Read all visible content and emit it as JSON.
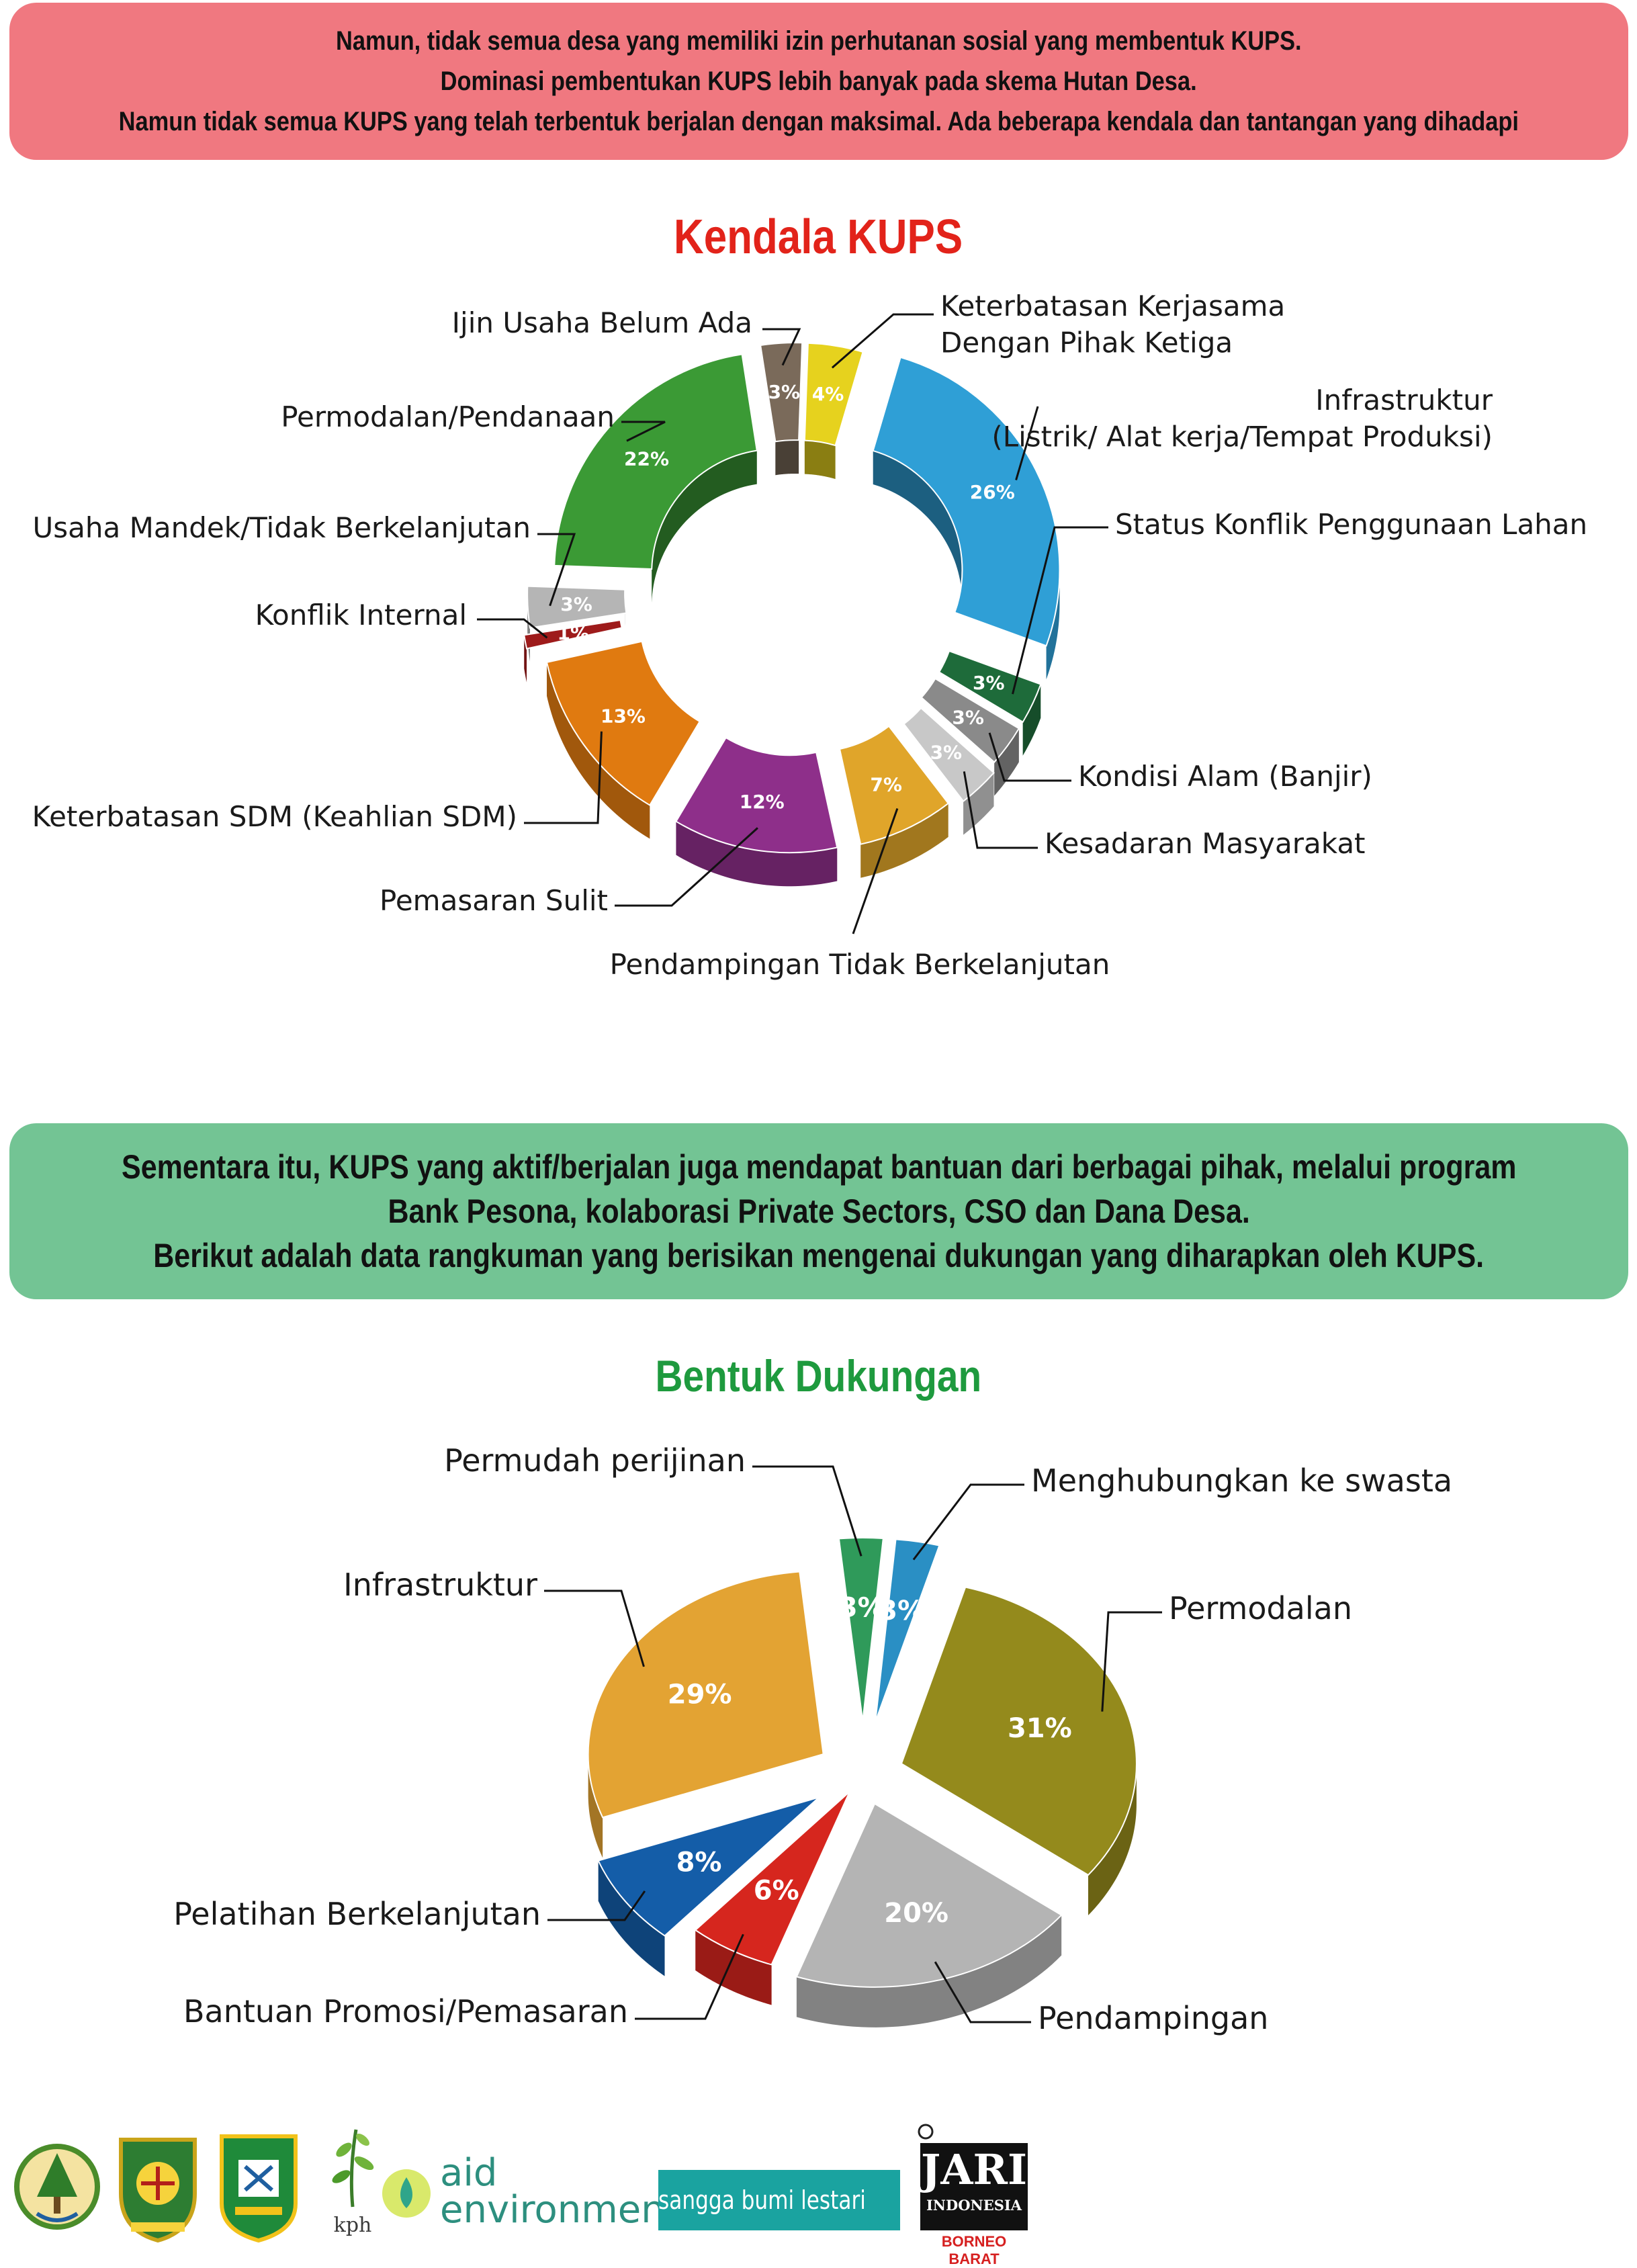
{
  "banners": {
    "top": [
      "Namun, tidak semua desa yang memiliki izin perhutanan sosial yang membentuk KUPS.",
      "Dominasi pembentukan KUPS lebih banyak pada skema Hutan Desa.",
      "Namun tidak semua KUPS yang telah terbentuk berjalan dengan maksimal. Ada beberapa kendala dan tantangan yang dihadapi"
    ],
    "middle": [
      "Sementara itu, KUPS yang aktif/berjalan juga mendapat bantuan dari berbagai pihak, melalui program",
      "Bank Pesona, kolaborasi Private Sectors, CSO dan Dana Desa.",
      "Berikut adalah data rangkuman yang berisikan mengenai dukungan yang diharapkan oleh KUPS."
    ]
  },
  "chart_data": [
    {
      "type": "pie",
      "variant": "donut-3d-exploded",
      "title": "Kendala KUPS",
      "unit": "%",
      "series": [
        {
          "values": [
            {
              "category": "Keterbatasan Kerjasama Dengan Pihak Ketiga",
              "value": 4,
              "label": "4%",
              "color": "#e6d21e"
            },
            {
              "category": "Infrastruktur (Listrik/ Alat kerja/Tempat Produksi)",
              "value": 26,
              "label": "26%",
              "color": "#2f9fd6"
            },
            {
              "category": "Status Konflik Penggunaan Lahan",
              "value": 3,
              "label": "3%",
              "color": "#1e6b3a"
            },
            {
              "category": "Kondisi Alam (Banjir)",
              "value": 3,
              "label": "3%",
              "color": "#8a8a8a"
            },
            {
              "category": "Kesadaran Masyarakat",
              "value": 3,
              "label": "3%",
              "color": "#c8c8c8"
            },
            {
              "category": "Pendampingan Tidak Berkelanjutan",
              "value": 7,
              "label": "7%",
              "color": "#e0a52a"
            },
            {
              "category": "Pemasaran Sulit",
              "value": 12,
              "label": "12%",
              "color": "#8e2f8a"
            },
            {
              "category": "Keterbatasan SDM (Keahlian SDM)",
              "value": 13,
              "label": "13%",
              "color": "#e07a10"
            },
            {
              "category": "Konflik Internal",
              "value": 1,
              "label": "1%",
              "color": "#9e1b1b"
            },
            {
              "category": "Usaha Mandek/Tidak Berkelanjutan",
              "value": 3,
              "label": "3%",
              "color": "#b5b5b5"
            },
            {
              "category": "Permodalan/Pendanaan",
              "value": 22,
              "label": "22%",
              "color": "#3b9a35"
            },
            {
              "category": "Ijin Usaha Belum Ada",
              "value": 3,
              "label": "3%",
              "color": "#7a6a5a"
            }
          ]
        }
      ],
      "label_lines": {
        "Keterbatasan Kerjasama Dengan Pihak Ketiga": [
          "Keterbatasan Kerjasama",
          "Dengan Pihak Ketiga"
        ],
        "Infrastruktur (Listrik/ Alat kerja/Tempat Produksi)": [
          "Infrastruktur",
          "(Listrik/ Alat kerja/Tempat Produksi)"
        ]
      }
    },
    {
      "type": "pie",
      "variant": "pie-3d-exploded",
      "title": "Bentuk Dukungan",
      "unit": "%",
      "series": [
        {
          "values": [
            {
              "category": "Menghubungkan ke swasta",
              "value": 3,
              "label": "3%",
              "color": "#2a8fc4"
            },
            {
              "category": "Permodalan",
              "value": 31,
              "label": "31%",
              "color": "#948a1c"
            },
            {
              "category": "Pendampingan",
              "value": 20,
              "label": "20%",
              "color": "#b4b4b4"
            },
            {
              "category": "Bantuan Promosi/Pemasaran",
              "value": 6,
              "label": "6%",
              "color": "#d6261e"
            },
            {
              "category": "Pelatihan Berkelanjutan",
              "value": 8,
              "label": "8%",
              "color": "#145da8"
            },
            {
              "category": "Infrastruktur",
              "value": 29,
              "label": "29%",
              "color": "#e3a333"
            },
            {
              "category": "Permudah perijinan",
              "value": 3,
              "label": "3%",
              "color": "#2f9a5a"
            }
          ]
        }
      ]
    }
  ],
  "logos": {
    "kph": "kph",
    "aid_line1": "aid",
    "aid_line2": "environment",
    "sangga": "sangga bumi lestari",
    "jari_line1": "JARI",
    "jari_line2": "INDONESIA",
    "jari_line3": "BORNEO BARAT"
  }
}
